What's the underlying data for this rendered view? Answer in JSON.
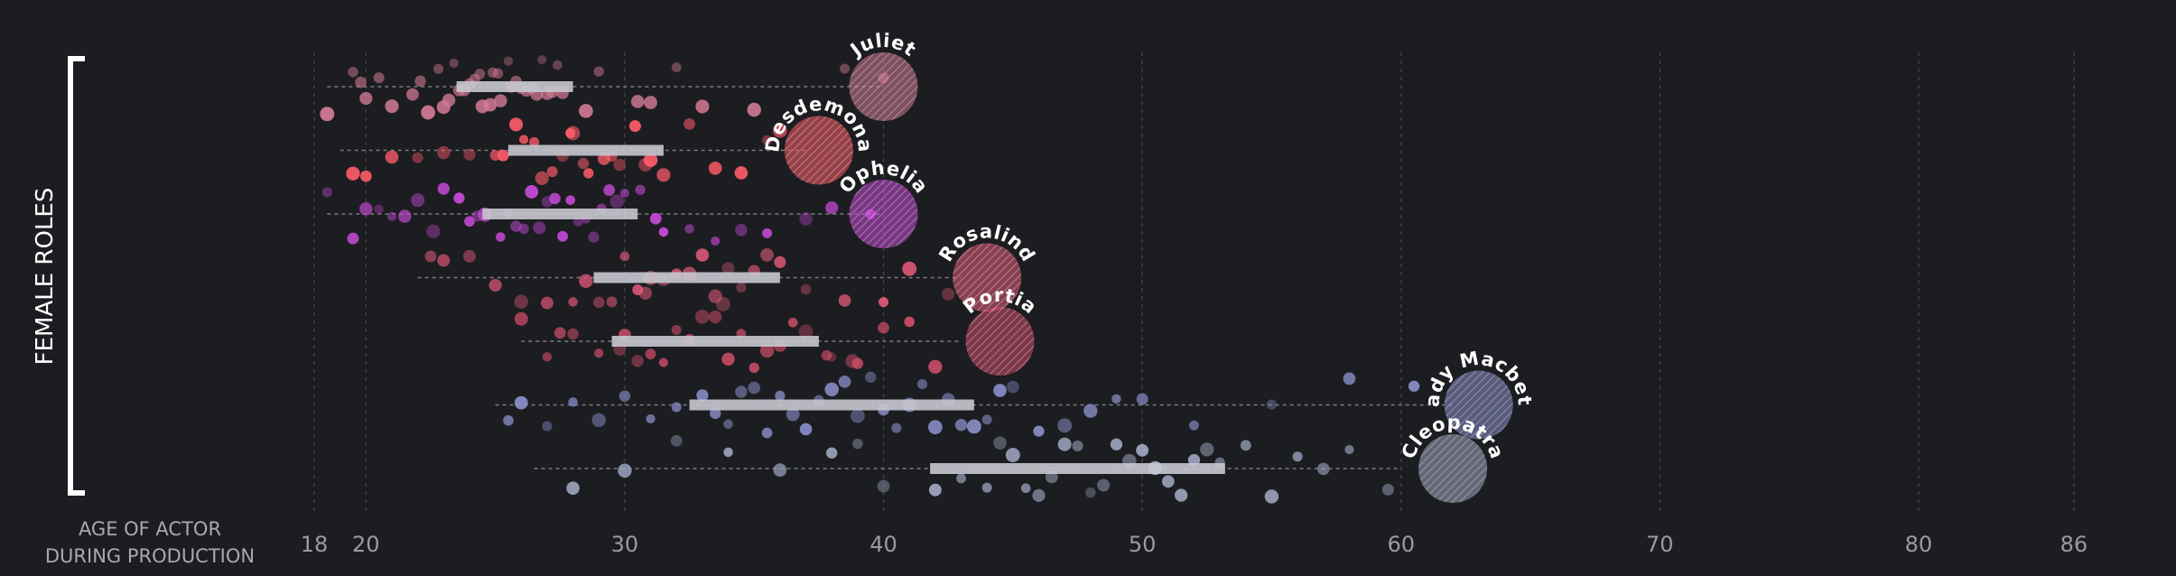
{
  "chart_data": {
    "type": "scatter",
    "y_axis_label": "FEMALE ROLES",
    "x_axis_label_lines": [
      "AGE OF ACTOR",
      "DURING PRODUCTION"
    ],
    "x_ticks": [
      18,
      20,
      30,
      40,
      50,
      60,
      70,
      80,
      86
    ],
    "xlim": [
      18,
      86
    ],
    "grid": true,
    "roles": [
      {
        "name": "Juliet",
        "color": "#d27a94",
        "range": [
          18.5,
          40
        ],
        "iqr": [
          23.5,
          28
        ],
        "character_age": 40,
        "ages": [
          22.8,
          23.2,
          23.6,
          24.0,
          24.4,
          24.8,
          25.2,
          25.6,
          26.0,
          26.4,
          26.8,
          27.2,
          27.6,
          22.1,
          21.0,
          20.5,
          19.8,
          19.5,
          18.5,
          20.0,
          23.0,
          24.5,
          25.5,
          27.0,
          28.5,
          29.0,
          30.5,
          32.0,
          35.0,
          38.5,
          40.0,
          23.8,
          24.2,
          25.8,
          26.2,
          27.4,
          21.8,
          22.4,
          24.9,
          25.1,
          31.0,
          33.0,
          26.6,
          23.4
        ]
      },
      {
        "name": "Desdemona",
        "color": "#ff5c69",
        "range": [
          19,
          37
        ],
        "iqr": [
          25.5,
          31.5
        ],
        "character_age": 37.5,
        "ages": [
          25.0,
          25.8,
          26.5,
          27.2,
          28.0,
          28.6,
          29.2,
          29.8,
          30.4,
          31.0,
          31.5,
          24.0,
          23.0,
          22.0,
          21.0,
          20.0,
          19.5,
          32.5,
          33.5,
          34.5,
          35.5,
          36.0,
          26.8,
          27.6,
          28.4,
          29.5,
          30.8,
          25.3,
          26.1,
          27.9
        ]
      },
      {
        "name": "Ophelia",
        "color": "#c54ad6",
        "range": [
          18.5,
          40
        ],
        "iqr": [
          24.5,
          30.5
        ],
        "character_age": 40,
        "ages": [
          24.0,
          24.6,
          25.2,
          25.8,
          26.4,
          27.0,
          27.6,
          28.2,
          28.8,
          29.4,
          30.0,
          30.6,
          23.0,
          22.0,
          21.5,
          21.0,
          20.5,
          20.0,
          19.5,
          18.5,
          31.5,
          32.5,
          33.5,
          34.5,
          35.5,
          37.0,
          38.0,
          39.5,
          25.5,
          26.7,
          27.3,
          28.5,
          29.1,
          23.6,
          22.6,
          24.3,
          26.1,
          27.9,
          29.7,
          31.2
        ]
      },
      {
        "name": "Rosalind",
        "color": "#e35b7a",
        "range": [
          22,
          43
        ],
        "iqr": [
          28.8,
          36
        ],
        "character_age": 44,
        "ages": [
          28.5,
          29.5,
          30.5,
          31.5,
          32.5,
          33.5,
          34.5,
          35.5,
          27.0,
          26.0,
          25.0,
          24.0,
          23.0,
          22.5,
          37.0,
          38.5,
          40.0,
          41.0,
          42.5,
          29.0,
          30.0,
          31.0,
          32.0,
          33.0,
          34.0,
          35.0,
          36.0,
          28.0,
          30.8,
          33.8
        ]
      },
      {
        "name": "Portia",
        "color": "#cf4d6a",
        "range": [
          26,
          43
        ],
        "iqr": [
          29.5,
          37.5
        ],
        "character_age": 44.5,
        "ages": [
          29.0,
          30.0,
          31.0,
          32.0,
          33.0,
          34.0,
          35.0,
          36.0,
          37.0,
          38.0,
          28.0,
          27.0,
          26.0,
          39.0,
          40.0,
          41.0,
          42.0,
          30.5,
          31.5,
          32.5,
          33.5,
          34.5,
          35.5,
          36.5,
          29.8,
          37.8,
          38.8,
          27.5
        ]
      },
      {
        "name": "Lady Macbeth",
        "color": "#8a8ec8",
        "range": [
          25,
          62
        ],
        "iqr": [
          32.5,
          43.5
        ],
        "character_age": 63,
        "ages": [
          33.0,
          34.0,
          35.0,
          36.0,
          37.0,
          38.0,
          39.0,
          40.0,
          41.0,
          42.0,
          43.0,
          32.0,
          31.0,
          30.0,
          29.0,
          28.0,
          27.0,
          26.0,
          25.5,
          44.0,
          45.0,
          46.0,
          47.0,
          48.0,
          49.0,
          50.0,
          52.0,
          55.0,
          58.0,
          60.5,
          34.5,
          36.5,
          38.5,
          40.5,
          42.5,
          35.5,
          37.5,
          39.5,
          41.5,
          43.5,
          33.5,
          44.5
        ]
      },
      {
        "name": "Cleopatra",
        "color": "#9ea6c0",
        "range": [
          26.5,
          60
        ],
        "iqr": [
          41.8,
          53.2
        ],
        "character_age": 62,
        "ages": [
          42.0,
          43.0,
          44.0,
          45.0,
          46.0,
          47.0,
          48.0,
          49.0,
          50.0,
          51.0,
          52.0,
          53.0,
          40.0,
          38.0,
          36.0,
          34.0,
          32.0,
          30.0,
          28.0,
          54.0,
          55.0,
          56.0,
          57.0,
          58.0,
          59.5,
          44.5,
          46.5,
          48.5,
          50.5,
          52.5,
          45.5,
          47.5,
          49.5,
          51.5,
          39.0
        ]
      }
    ]
  }
}
